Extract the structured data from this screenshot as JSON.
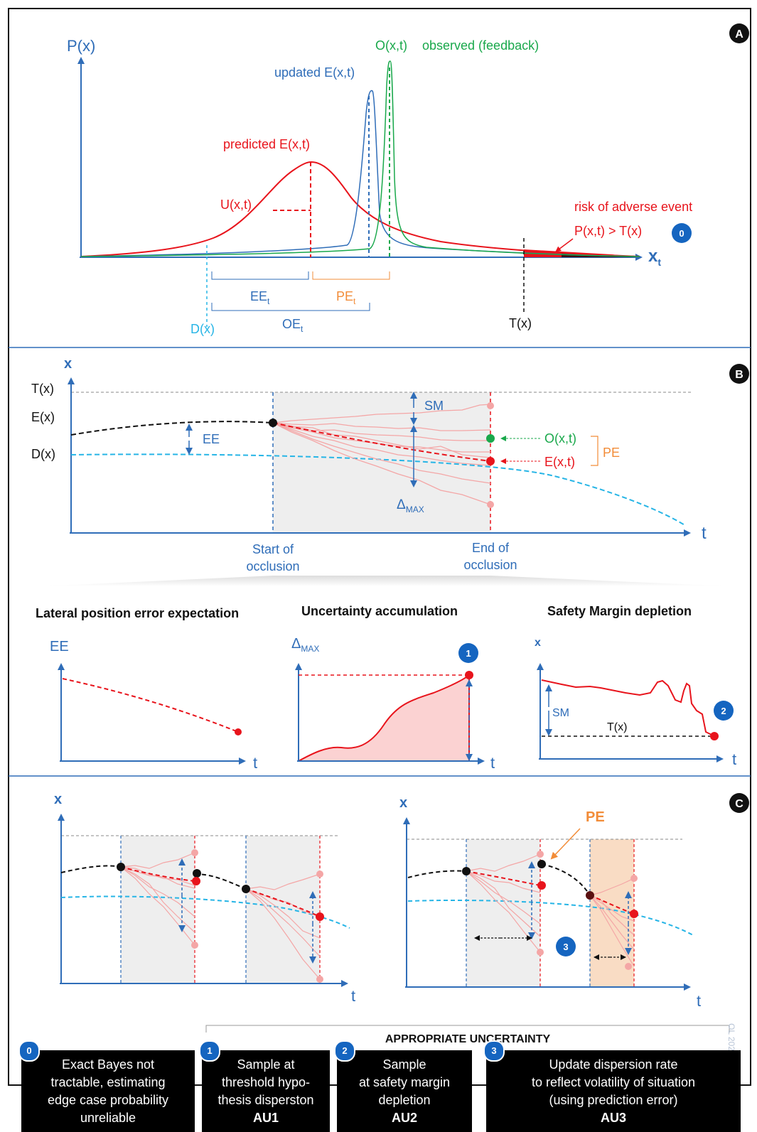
{
  "colors": {
    "blue_axis": "#2f6db8",
    "red": "#e8141c",
    "green": "#19a84b",
    "orange": "#f28c38",
    "light_blue": "#27b5e6",
    "pink": "#f4a6a6",
    "gray_fill": "#eeeeee",
    "badge": "#1565c0"
  },
  "panel_a": {
    "badge": "A",
    "y_axis": "P(x)",
    "x_axis": "x",
    "x_axis_sub": "t",
    "observed_label": "O(x,t)",
    "observed_desc": "observed (feedback)",
    "updated_label": "updated  E(x,t)",
    "predicted_label": "predicted  E(x,t)",
    "uncertainty_label": "U(x,t)",
    "risk_label": "risk of adverse event",
    "risk_formula": "P(x,t) > T(x)",
    "risk_badge": "0",
    "ee": "EE",
    "ee_sub": "t",
    "pe": "PE",
    "pe_sub": "t",
    "oe": "OE",
    "oe_sub": "t",
    "d": "D(x)",
    "t": "T(x)"
  },
  "panel_b": {
    "badge": "B",
    "y_axis": "x",
    "x_axis": "t",
    "t_label": "T(x)",
    "e_label": "E(x)",
    "d_label": "D(x)",
    "ee": "EE",
    "sm": "SM",
    "delta": "Δ",
    "delta_sub": "MAX",
    "o_label": "O(x,t)",
    "e_label2": "E(x,t)",
    "pe": "PE",
    "start_line1": "Start of",
    "start_line2": "occlusion",
    "end_line1": "End of",
    "end_line2": "occlusion"
  },
  "mini": {
    "title1": "Lateral position error expectation",
    "title2": "Uncertainty accumulation",
    "title3": "Safety Margin depletion",
    "y1": "EE",
    "y2": "Δ",
    "y2_sub": "MAX",
    "y3": "x",
    "t": "t",
    "badge1": "1",
    "badge2": "2",
    "sm": "SM",
    "tx": "T(x)"
  },
  "panel_c": {
    "badge": "C",
    "y_axis": "x",
    "x_axis": "t",
    "pe": "PE",
    "badge3": "3"
  },
  "bottom": {
    "appropriate": "APPROPRIATE UNCERTAINTY",
    "signature": "OL 2021",
    "boxes": [
      {
        "badge": "0",
        "lines": [
          "Exact Bayes not",
          "tractable, estimating",
          "edge case probability",
          "unreliable"
        ],
        "bold": ""
      },
      {
        "badge": "1",
        "lines": [
          "Sample at",
          "threshold hypo-",
          "thesis disperston"
        ],
        "bold": "AU1"
      },
      {
        "badge": "2",
        "lines": [
          "Sample",
          "at safety margin",
          "depletion"
        ],
        "bold": "AU2"
      },
      {
        "badge": "3",
        "lines": [
          "Update dispersion rate",
          "to reflect volatility of situation",
          "(using prediction error)"
        ],
        "bold": "AU3"
      }
    ]
  }
}
